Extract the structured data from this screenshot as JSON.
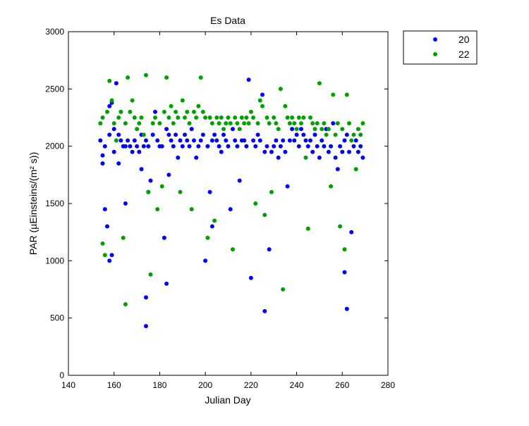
{
  "chart_data": {
    "type": "scatter",
    "title": "Es Data",
    "xlabel": "Julian Day",
    "ylabel": "PAR (µEinsteins/(m² s))",
    "xlim": [
      140,
      280
    ],
    "ylim": [
      0,
      3000
    ],
    "xticks": [
      140,
      160,
      180,
      200,
      220,
      240,
      260,
      280
    ],
    "yticks": [
      0,
      500,
      1000,
      1500,
      2000,
      2500,
      3000
    ],
    "grid": false,
    "legend_position": "outside-top-right",
    "series": [
      {
        "name": "20",
        "color": "#0000ff",
        "x": [
          154,
          155,
          155,
          156,
          156,
          157,
          158,
          158,
          158,
          159,
          159,
          160,
          160,
          161,
          162,
          162,
          163,
          164,
          165,
          165,
          166,
          167,
          168,
          169,
          170,
          171,
          172,
          172,
          173,
          174,
          174,
          174,
          175,
          175,
          176,
          177,
          178,
          179,
          180,
          181,
          182,
          183,
          183,
          184,
          184,
          185,
          186,
          187,
          188,
          189,
          190,
          191,
          192,
          193,
          194,
          195,
          196,
          197,
          198,
          199,
          200,
          201,
          202,
          203,
          203,
          204,
          205,
          206,
          207,
          208,
          209,
          210,
          211,
          212,
          213,
          214,
          215,
          216,
          217,
          218,
          219,
          220,
          221,
          222,
          223,
          224,
          225,
          226,
          226,
          227,
          228,
          229,
          230,
          231,
          232,
          233,
          234,
          235,
          236,
          237,
          238,
          239,
          240,
          241,
          242,
          243,
          244,
          245,
          246,
          247,
          248,
          249,
          250,
          251,
          252,
          253,
          254,
          255,
          256,
          257,
          258,
          259,
          260,
          261,
          261,
          262,
          262,
          263,
          264,
          265,
          266,
          267,
          268,
          269
        ],
        "y": [
          2050,
          1920,
          1850,
          2000,
          1450,
          1300,
          2100,
          1000,
          2350,
          1050,
          2380,
          2150,
          1950,
          2550,
          2100,
          1850,
          2050,
          2000,
          1500,
          2000,
          2050,
          2000,
          1950,
          2050,
          2000,
          1950,
          2100,
          1800,
          2000,
          430,
          2050,
          680,
          1600,
          2000,
          1700,
          2100,
          2300,
          2050,
          2000,
          2000,
          1200,
          800,
          2150,
          1750,
          2100,
          2050,
          2000,
          2100,
          1900,
          2050,
          2000,
          2100,
          2050,
          2000,
          2150,
          2050,
          1900,
          2000,
          2050,
          2100,
          1000,
          2000,
          1600,
          2050,
          1300,
          2100,
          2050,
          2000,
          1950,
          2100,
          2050,
          2000,
          1450,
          2150,
          2050,
          2000,
          1700,
          2050,
          2050,
          2000,
          2580,
          850,
          2050,
          2000,
          2100,
          2050,
          2450,
          1950,
          560,
          2000,
          1100,
          1950,
          2000,
          2050,
          1900,
          2000,
          2050,
          1950,
          1650,
          2050,
          2150,
          2050,
          2100,
          2000,
          2150,
          2100,
          2050,
          2000,
          2050,
          1950,
          2100,
          2000,
          1900,
          2050,
          2000,
          2150,
          1950,
          2000,
          2200,
          1900,
          1800,
          2000,
          1950,
          2050,
          900,
          2100,
          580,
          1950,
          1250,
          2000,
          2050,
          1950,
          2000,
          1900
        ]
      },
      {
        "name": "22",
        "color": "#00a000",
        "x": [
          154,
          155,
          155,
          156,
          157,
          158,
          159,
          160,
          161,
          162,
          163,
          164,
          165,
          165,
          166,
          167,
          168,
          169,
          170,
          171,
          172,
          173,
          174,
          175,
          176,
          177,
          178,
          179,
          180,
          181,
          182,
          183,
          184,
          185,
          186,
          187,
          188,
          189,
          190,
          191,
          192,
          193,
          194,
          195,
          196,
          197,
          198,
          199,
          200,
          201,
          202,
          203,
          204,
          205,
          206,
          207,
          208,
          209,
          210,
          211,
          212,
          213,
          214,
          215,
          216,
          217,
          218,
          219,
          220,
          221,
          222,
          223,
          224,
          225,
          226,
          227,
          228,
          229,
          230,
          231,
          232,
          233,
          234,
          235,
          236,
          237,
          238,
          239,
          240,
          241,
          242,
          243,
          244,
          245,
          246,
          247,
          248,
          249,
          250,
          251,
          252,
          253,
          254,
          255,
          256,
          257,
          258,
          259,
          260,
          261,
          262,
          263,
          264,
          265,
          266,
          267,
          268,
          269
        ],
        "y": [
          2200,
          1150,
          2250,
          1050,
          2300,
          2570,
          2400,
          2200,
          2050,
          2250,
          2300,
          1200,
          620,
          2200,
          2600,
          2300,
          2400,
          2250,
          2150,
          2200,
          2250,
          2100,
          2620,
          1600,
          880,
          2200,
          2250,
          1450,
          2200,
          1650,
          2300,
          2600,
          2250,
          2350,
          2200,
          2300,
          2250,
          1600,
          2400,
          2250,
          2300,
          2200,
          1450,
          2300,
          2250,
          2350,
          2600,
          2300,
          2250,
          1200,
          2250,
          2200,
          1350,
          2250,
          2200,
          2250,
          2150,
          2200,
          2250,
          2200,
          1100,
          2250,
          2200,
          2150,
          2250,
          2200,
          2250,
          2200,
          2300,
          2250,
          1500,
          2200,
          2400,
          2350,
          1400,
          2250,
          2200,
          1600,
          2250,
          2200,
          2150,
          2500,
          750,
          2350,
          2250,
          2200,
          2250,
          2200,
          2150,
          2250,
          2200,
          2250,
          1900,
          1280,
          2250,
          2200,
          2150,
          2200,
          2550,
          2150,
          2200,
          2100,
          2150,
          1650,
          2450,
          2100,
          2200,
          1300,
          2150,
          1100,
          2450,
          2200,
          2050,
          2100,
          1800,
          2150,
          2100,
          2200
        ]
      }
    ]
  }
}
